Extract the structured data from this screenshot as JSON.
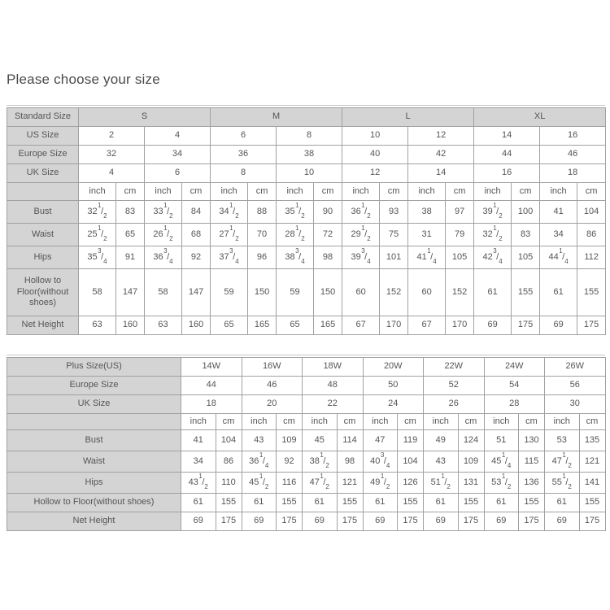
{
  "page": {
    "title": "Please choose your size"
  },
  "units": {
    "inch": "inch",
    "cm": "cm"
  },
  "colors": {
    "header_bg": "#d4d4d4",
    "border": "#a1a1a1",
    "text": "#555555"
  },
  "standard_table": {
    "corner_label": "Standard Size",
    "size_groups": [
      "S",
      "M",
      "L",
      "XL"
    ],
    "size_rows": [
      {
        "label": "US Size",
        "values": [
          "2",
          "4",
          "6",
          "8",
          "10",
          "12",
          "14",
          "16"
        ]
      },
      {
        "label": "Europe Size",
        "values": [
          "32",
          "34",
          "36",
          "38",
          "40",
          "42",
          "44",
          "46"
        ]
      },
      {
        "label": "UK Size",
        "values": [
          "4",
          "6",
          "8",
          "10",
          "12",
          "14",
          "16",
          "18"
        ]
      }
    ],
    "measure_rows": [
      {
        "label": "Bust",
        "values": [
          "32 1/2",
          "83",
          "33 1/2",
          "84",
          "34 1/2",
          "88",
          "35 1/2",
          "90",
          "36 1/2",
          "93",
          "38",
          "97",
          "39 1/2",
          "100",
          "41",
          "104"
        ]
      },
      {
        "label": "Waist",
        "values": [
          "25 1/2",
          "65",
          "26 1/2",
          "68",
          "27 1/2",
          "70",
          "28 1/2",
          "72",
          "29 1/2",
          "75",
          "31",
          "79",
          "32 1/2",
          "83",
          "34",
          "86"
        ]
      },
      {
        "label": "Hips",
        "values": [
          "35 3/4",
          "91",
          "36 3/4",
          "92",
          "37 3/4",
          "96",
          "38 3/4",
          "98",
          "39 3/4",
          "101",
          "41 1/4",
          "105",
          "42 3/4",
          "105",
          "44 1/4",
          "112"
        ]
      },
      {
        "label": "Hollow to Floor(without shoes)",
        "values": [
          "58",
          "147",
          "58",
          "147",
          "59",
          "150",
          "59",
          "150",
          "60",
          "152",
          "60",
          "152",
          "61",
          "155",
          "61",
          "155"
        ]
      },
      {
        "label": "Net Height",
        "values": [
          "63",
          "160",
          "63",
          "160",
          "65",
          "165",
          "65",
          "165",
          "67",
          "170",
          "67",
          "170",
          "69",
          "175",
          "69",
          "175"
        ]
      }
    ]
  },
  "plus_table": {
    "size_rows": [
      {
        "label": "Plus Size(US)",
        "values": [
          "14W",
          "16W",
          "18W",
          "20W",
          "22W",
          "24W",
          "26W"
        ]
      },
      {
        "label": "Europe Size",
        "values": [
          "44",
          "46",
          "48",
          "50",
          "52",
          "54",
          "56"
        ]
      },
      {
        "label": "UK Size",
        "values": [
          "18",
          "20",
          "22",
          "24",
          "26",
          "28",
          "30"
        ]
      }
    ],
    "measure_rows": [
      {
        "label": "Bust",
        "values": [
          "41",
          "104",
          "43",
          "109",
          "45",
          "114",
          "47",
          "119",
          "49",
          "124",
          "51",
          "130",
          "53",
          "135"
        ]
      },
      {
        "label": "Waist",
        "values": [
          "34",
          "86",
          "36 1/4",
          "92",
          "38 1/2",
          "98",
          "40 3/4",
          "104",
          "43",
          "109",
          "45 1/4",
          "115",
          "47 1/2",
          "121"
        ]
      },
      {
        "label": "Hips",
        "values": [
          "43 1/2",
          "110",
          "45 1/2",
          "116",
          "47 1/2",
          "121",
          "49 1/2",
          "126",
          "51 1/2",
          "131",
          "53 1/2",
          "136",
          "55 1/2",
          "141"
        ]
      },
      {
        "label": "Hollow to Floor(without shoes)",
        "values": [
          "61",
          "155",
          "61",
          "155",
          "61",
          "155",
          "61",
          "155",
          "61",
          "155",
          "61",
          "155",
          "61",
          "155"
        ]
      },
      {
        "label": "Net Height",
        "values": [
          "69",
          "175",
          "69",
          "175",
          "69",
          "175",
          "69",
          "175",
          "69",
          "175",
          "69",
          "175",
          "69",
          "175"
        ]
      }
    ]
  }
}
